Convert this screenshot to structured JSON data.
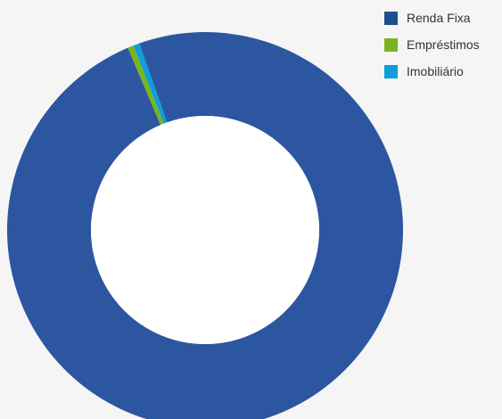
{
  "chart_data": {
    "type": "pie",
    "title": "",
    "hole": true,
    "legend_position": "top-right",
    "series": [
      {
        "name": "Renda Fixa",
        "value": 99.0,
        "color": "#2c56a0"
      },
      {
        "name": "Empréstimos",
        "value": 0.5,
        "color": "#7ab41d"
      },
      {
        "name": "Imobiliário",
        "value": 0.5,
        "color": "#0f9ddb"
      }
    ],
    "legend": [
      {
        "label": "Renda Fixa",
        "color": "#1f4e8c"
      },
      {
        "label": "Empréstimos",
        "color": "#7ab41d"
      },
      {
        "label": "Imobiliário",
        "color": "#0f9ddb"
      }
    ]
  }
}
